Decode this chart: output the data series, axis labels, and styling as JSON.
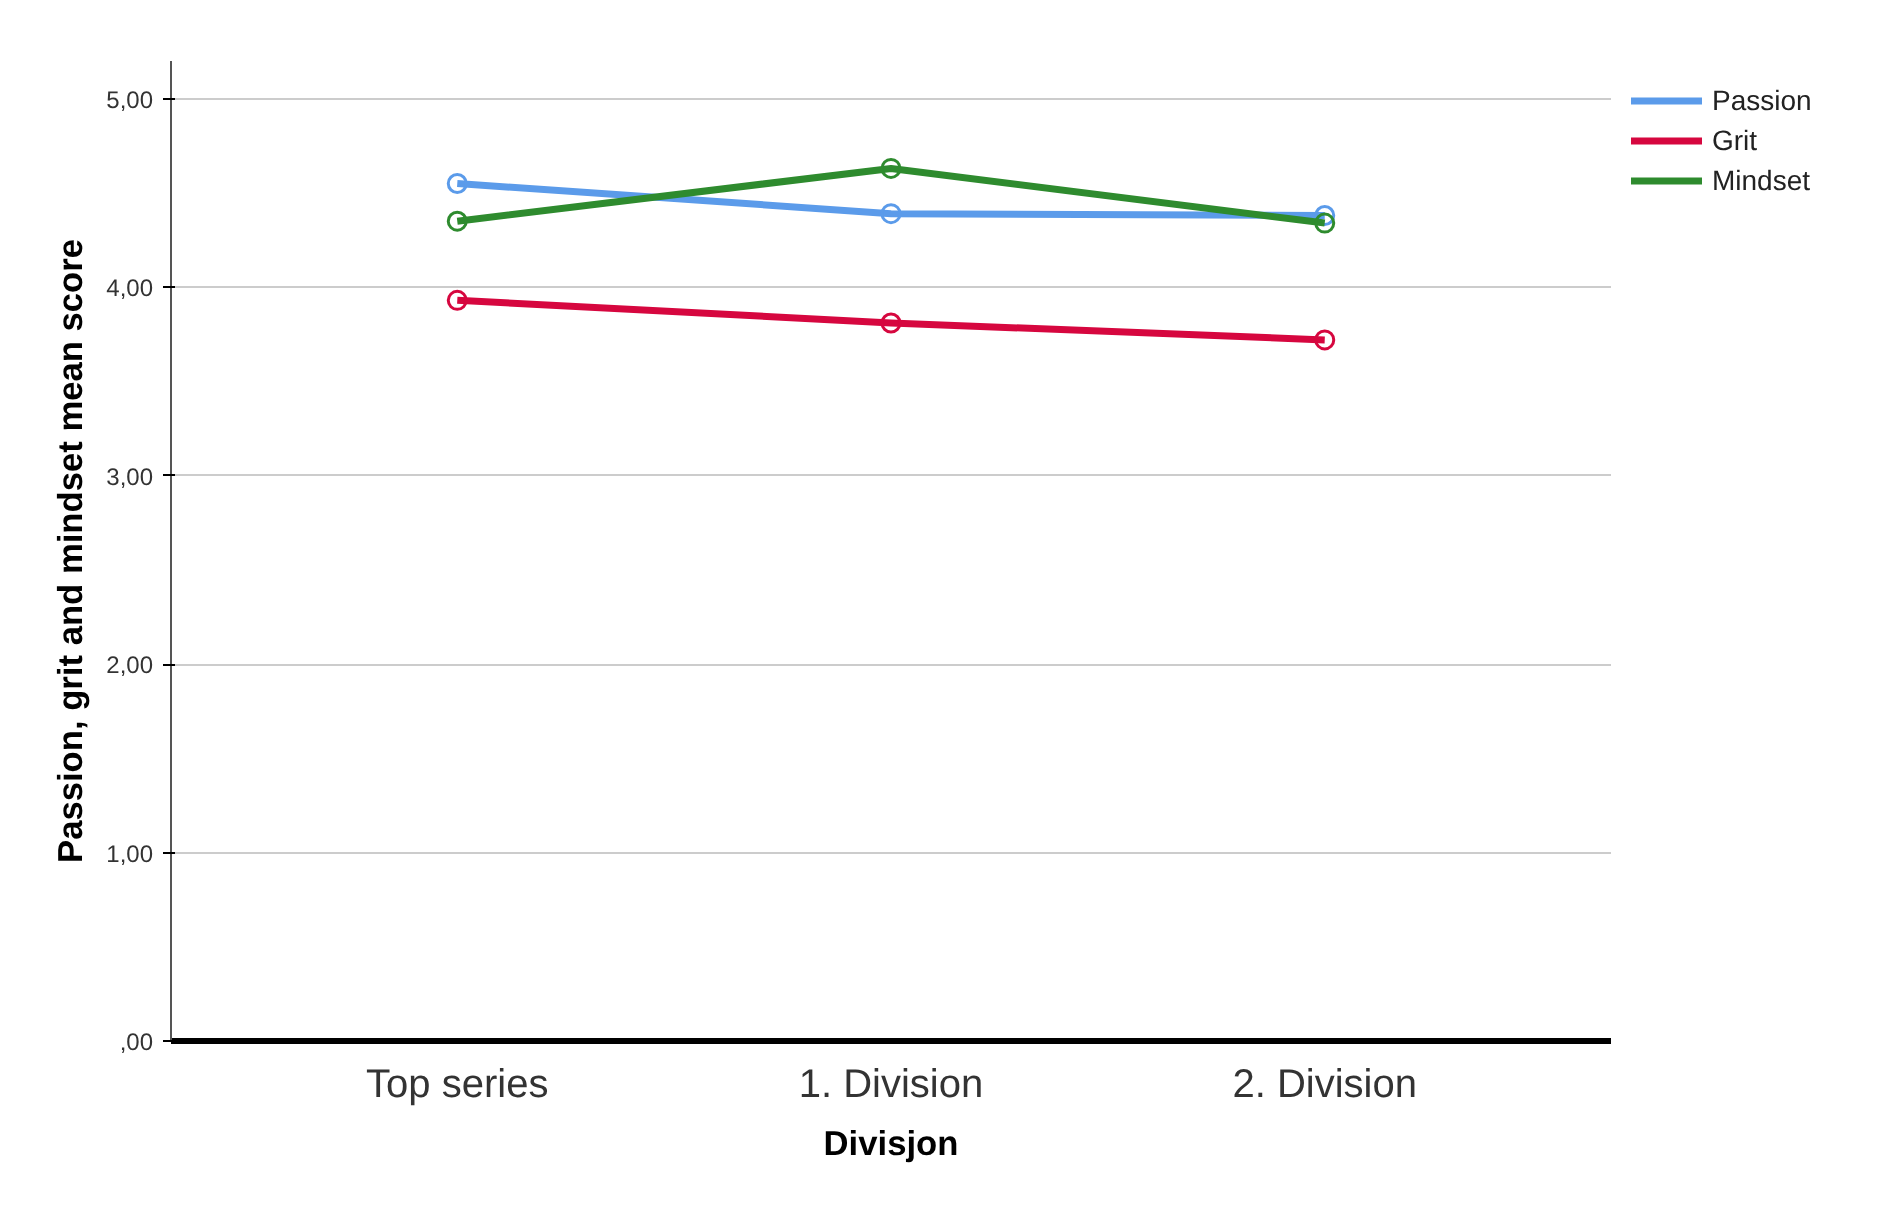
{
  "chart_data": {
    "type": "line",
    "xlabel": "Divisjon",
    "ylabel": "Passion, grit and mindset mean score",
    "categories": [
      "Top series",
      "1. Division",
      "2. Division"
    ],
    "series": [
      {
        "name": "Passion",
        "color": "#5b9bea",
        "values": [
          4.55,
          4.39,
          4.38
        ]
      },
      {
        "name": "Grit",
        "color": "#d6073f",
        "values": [
          3.93,
          3.81,
          3.72
        ]
      },
      {
        "name": "Mindset",
        "color": "#2e8b2e",
        "values": [
          4.35,
          4.63,
          4.34
        ]
      }
    ],
    "ylim": [
      0,
      5.2
    ],
    "yticks": [
      {
        "value": 0,
        "label": ",00"
      },
      {
        "value": 1,
        "label": "1,00"
      },
      {
        "value": 2,
        "label": "2,00"
      },
      {
        "value": 3,
        "label": "3,00"
      },
      {
        "value": 4,
        "label": "4,00"
      },
      {
        "value": 5,
        "label": "5,00"
      }
    ],
    "grid": "y",
    "legend": "top right",
    "marker": "circle",
    "line_style": "solid"
  }
}
